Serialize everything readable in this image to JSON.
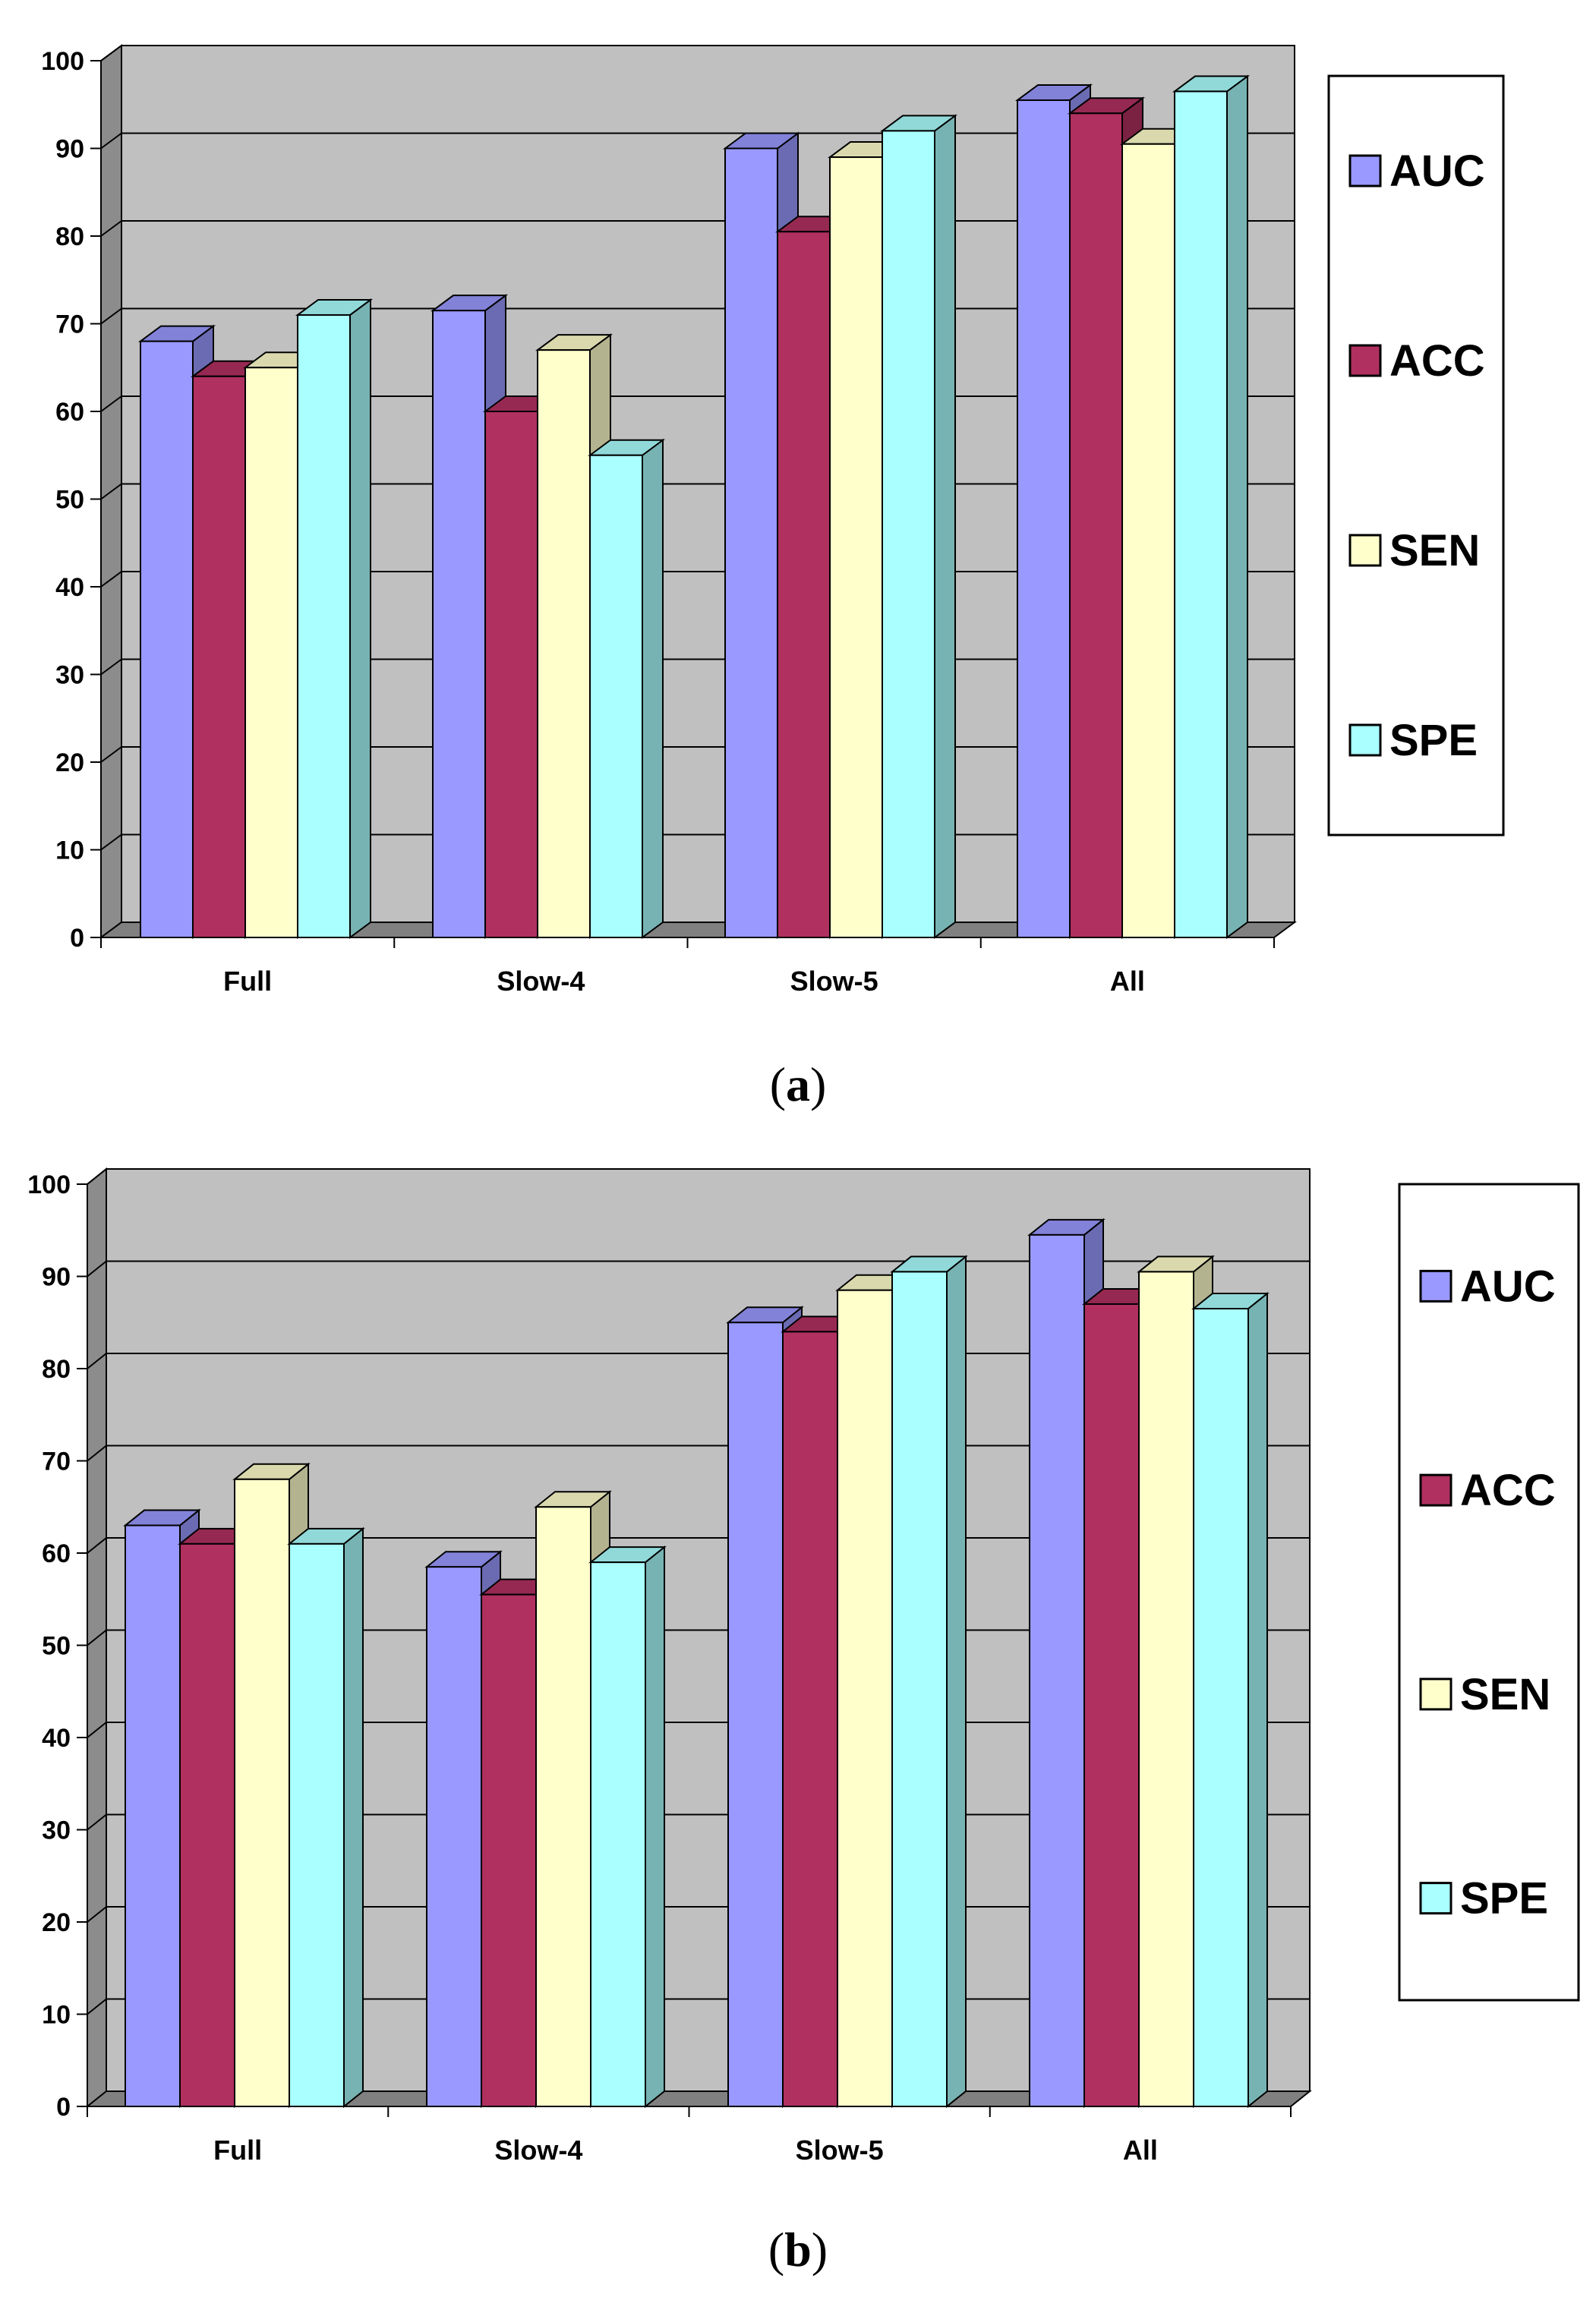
{
  "colors": {
    "AUC": "#9999ff",
    "ACC": "#b03060",
    "SEN": "#ffffcc",
    "SPE": "#aaffff",
    "wall": "#c0c0c0",
    "sidewall": "#8c8c8c"
  },
  "chart_data": [
    {
      "type": "bar",
      "panel": "a",
      "caption": "(a)",
      "categories": [
        "Full",
        "Slow-4",
        "Slow-5",
        "All"
      ],
      "series": [
        {
          "name": "AUC",
          "values": [
            68,
            71.5,
            90,
            95.5
          ]
        },
        {
          "name": "ACC",
          "values": [
            64,
            60,
            80.5,
            94
          ]
        },
        {
          "name": "SEN",
          "values": [
            65,
            67,
            89,
            90.5
          ]
        },
        {
          "name": "SPE",
          "values": [
            71,
            55,
            92,
            96.5
          ]
        }
      ],
      "yticks": [
        "0",
        "10",
        "20",
        "30",
        "40",
        "50",
        "60",
        "70",
        "80",
        "90",
        "100"
      ],
      "ylim": [
        0,
        100
      ],
      "legend_position": "right",
      "grid": true
    },
    {
      "type": "bar",
      "panel": "b",
      "caption": "(b)",
      "categories": [
        "Full",
        "Slow-4",
        "Slow-5",
        "All"
      ],
      "series": [
        {
          "name": "AUC",
          "values": [
            63,
            58.5,
            85,
            94.5
          ]
        },
        {
          "name": "ACC",
          "values": [
            61,
            55.5,
            84,
            87
          ]
        },
        {
          "name": "SEN",
          "values": [
            68,
            65,
            88.5,
            90.5
          ]
        },
        {
          "name": "SPE",
          "values": [
            61,
            59,
            90.5,
            86.5
          ]
        }
      ],
      "yticks": [
        "0",
        "10",
        "20",
        "30",
        "40",
        "50",
        "60",
        "70",
        "80",
        "90",
        "100"
      ],
      "ylim": [
        0,
        100
      ],
      "legend_position": "right",
      "grid": true
    }
  ]
}
